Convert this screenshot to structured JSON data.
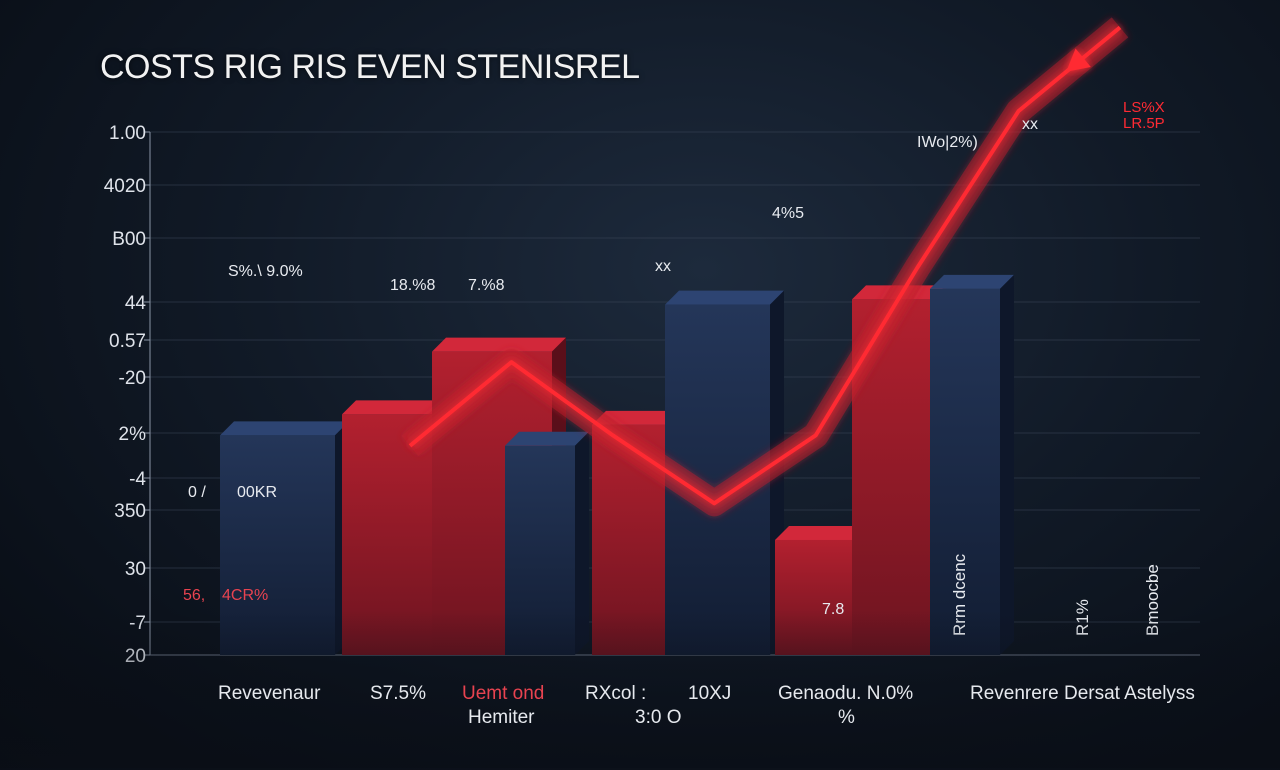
{
  "title": "COSTS RIG RIS EVEN STENISREL",
  "colors": {
    "red": "#a11c2e",
    "red_light": "#c62436",
    "navy": "#1b2a47",
    "navy_light": "#24375c",
    "accent": "#ff2a33"
  },
  "chart_data": {
    "type": "bar",
    "title": "COSTS RIG RIS EVEN STENISREL",
    "y_ticks": [
      "1.00",
      "4020",
      "B00",
      "44",
      "0.57",
      "-20",
      "2%",
      "-4",
      "350",
      "30",
      "-7",
      "20"
    ],
    "bar_labels": [
      "S%.\\ 9.0%",
      "18.%8",
      "7.%8",
      "xx",
      "4%5",
      "IWo|2%)",
      "xx",
      "LS%X",
      "LR.5P",
      "0 /",
      "00KR",
      "56,",
      "4CR%",
      "7.8"
    ],
    "side_labels": [
      "Rrm dcenc",
      "R1%",
      "Bmoocbe"
    ],
    "bars": [
      {
        "series": "navy",
        "value": 42
      },
      {
        "series": "red",
        "value": 46
      },
      {
        "series": "red",
        "value": 58
      },
      {
        "series": "navy",
        "value": 40
      },
      {
        "series": "red",
        "value": 44
      },
      {
        "series": "navy",
        "value": 67
      },
      {
        "series": "red",
        "value": 22
      },
      {
        "series": "red",
        "value": 68
      },
      {
        "series": "navy",
        "value": 70
      }
    ],
    "trend_line": [
      40,
      56,
      42,
      29,
      42,
      74,
      104,
      120
    ],
    "ylim": [
      0,
      100
    ],
    "grid": true,
    "categories": [
      {
        "line1": "Revevenaur",
        "line2": ""
      },
      {
        "line1": "S7.5%",
        "line2": ""
      },
      {
        "line1": "Uemt ond",
        "line2": "Hemiter"
      },
      {
        "line1": "RXcol :",
        "line2": "3:0  O"
      },
      {
        "line1": "10XJ",
        "line2": ""
      },
      {
        "line1": "Genaodu. N.0%",
        "line2": "%"
      },
      {
        "line1": "Revenrere Dersat Astelyss",
        "line2": ""
      }
    ]
  }
}
